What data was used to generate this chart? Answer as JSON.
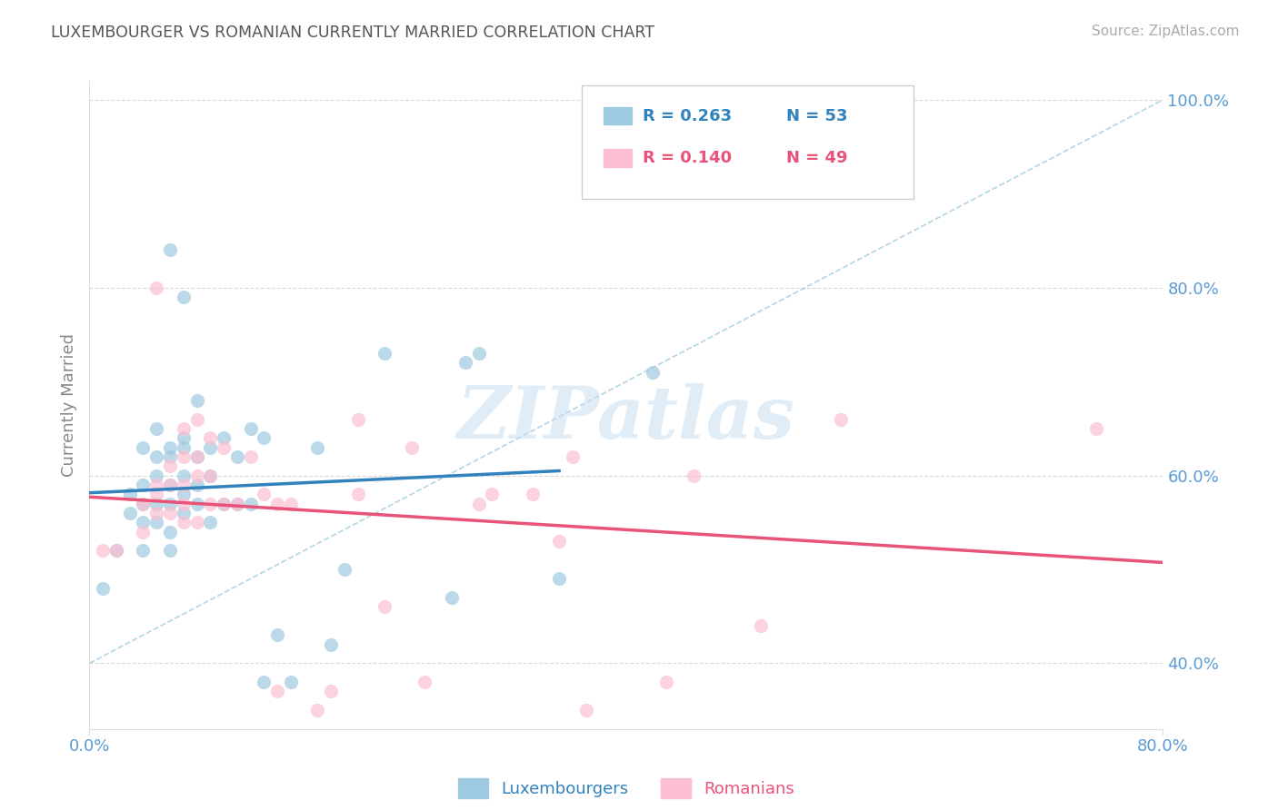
{
  "title": "LUXEMBOURGER VS ROMANIAN CURRENTLY MARRIED CORRELATION CHART",
  "source_text": "Source: ZipAtlas.com",
  "ylabel": "Currently Married",
  "xlim": [
    0.0,
    0.8
  ],
  "ylim": [
    0.33,
    1.02
  ],
  "yticks_right": [
    0.4,
    0.6,
    0.8,
    1.0
  ],
  "yticklabels_right": [
    "40.0%",
    "60.0%",
    "80.0%",
    "100.0%"
  ],
  "lux_R": 0.263,
  "lux_N": 53,
  "rom_R": 0.14,
  "rom_N": 49,
  "blue_color": "#9ecae1",
  "pink_color": "#fcbfd2",
  "blue_line_color": "#3182bd",
  "pink_line_color": "#e9537a",
  "blue_label_color": "#3182bd",
  "pink_label_color": "#e9537a",
  "title_color": "#555555",
  "axis_label_color": "#888888",
  "tick_color": "#5b9bd5",
  "grid_color": "#d9d9d9",
  "diagonal_color": "#9ecae1",
  "watermark_text": "ZIPatlas",
  "lux_x": [
    0.01,
    0.02,
    0.03,
    0.03,
    0.04,
    0.04,
    0.04,
    0.04,
    0.04,
    0.05,
    0.05,
    0.05,
    0.05,
    0.05,
    0.06,
    0.06,
    0.06,
    0.06,
    0.06,
    0.06,
    0.06,
    0.07,
    0.07,
    0.07,
    0.07,
    0.07,
    0.07,
    0.08,
    0.08,
    0.08,
    0.08,
    0.09,
    0.09,
    0.09,
    0.1,
    0.1,
    0.11,
    0.11,
    0.12,
    0.12,
    0.13,
    0.13,
    0.14,
    0.15,
    0.17,
    0.18,
    0.19,
    0.22,
    0.27,
    0.28,
    0.29,
    0.35,
    0.42
  ],
  "lux_y": [
    0.48,
    0.52,
    0.56,
    0.58,
    0.52,
    0.55,
    0.57,
    0.59,
    0.63,
    0.55,
    0.57,
    0.6,
    0.62,
    0.65,
    0.52,
    0.54,
    0.57,
    0.59,
    0.62,
    0.63,
    0.84,
    0.56,
    0.58,
    0.6,
    0.63,
    0.64,
    0.79,
    0.57,
    0.59,
    0.62,
    0.68,
    0.55,
    0.6,
    0.63,
    0.57,
    0.64,
    0.57,
    0.62,
    0.57,
    0.65,
    0.38,
    0.64,
    0.43,
    0.38,
    0.63,
    0.42,
    0.5,
    0.73,
    0.47,
    0.72,
    0.73,
    0.49,
    0.71
  ],
  "rom_x": [
    0.01,
    0.02,
    0.04,
    0.04,
    0.05,
    0.05,
    0.05,
    0.05,
    0.06,
    0.06,
    0.06,
    0.07,
    0.07,
    0.07,
    0.07,
    0.07,
    0.08,
    0.08,
    0.08,
    0.08,
    0.09,
    0.09,
    0.09,
    0.1,
    0.1,
    0.11,
    0.12,
    0.13,
    0.14,
    0.14,
    0.15,
    0.17,
    0.18,
    0.2,
    0.2,
    0.22,
    0.24,
    0.25,
    0.29,
    0.3,
    0.33,
    0.35,
    0.36,
    0.37,
    0.43,
    0.45,
    0.5,
    0.56,
    0.75
  ],
  "rom_y": [
    0.52,
    0.52,
    0.54,
    0.57,
    0.56,
    0.58,
    0.59,
    0.8,
    0.56,
    0.59,
    0.61,
    0.55,
    0.57,
    0.59,
    0.62,
    0.65,
    0.55,
    0.6,
    0.62,
    0.66,
    0.57,
    0.6,
    0.64,
    0.57,
    0.63,
    0.57,
    0.62,
    0.58,
    0.57,
    0.37,
    0.57,
    0.35,
    0.37,
    0.58,
    0.66,
    0.46,
    0.63,
    0.38,
    0.57,
    0.58,
    0.58,
    0.53,
    0.62,
    0.35,
    0.38,
    0.6,
    0.44,
    0.66,
    0.65
  ],
  "lux_trend_xlim": [
    0.0,
    0.35
  ],
  "rom_trend_xlim": [
    0.0,
    0.8
  ]
}
